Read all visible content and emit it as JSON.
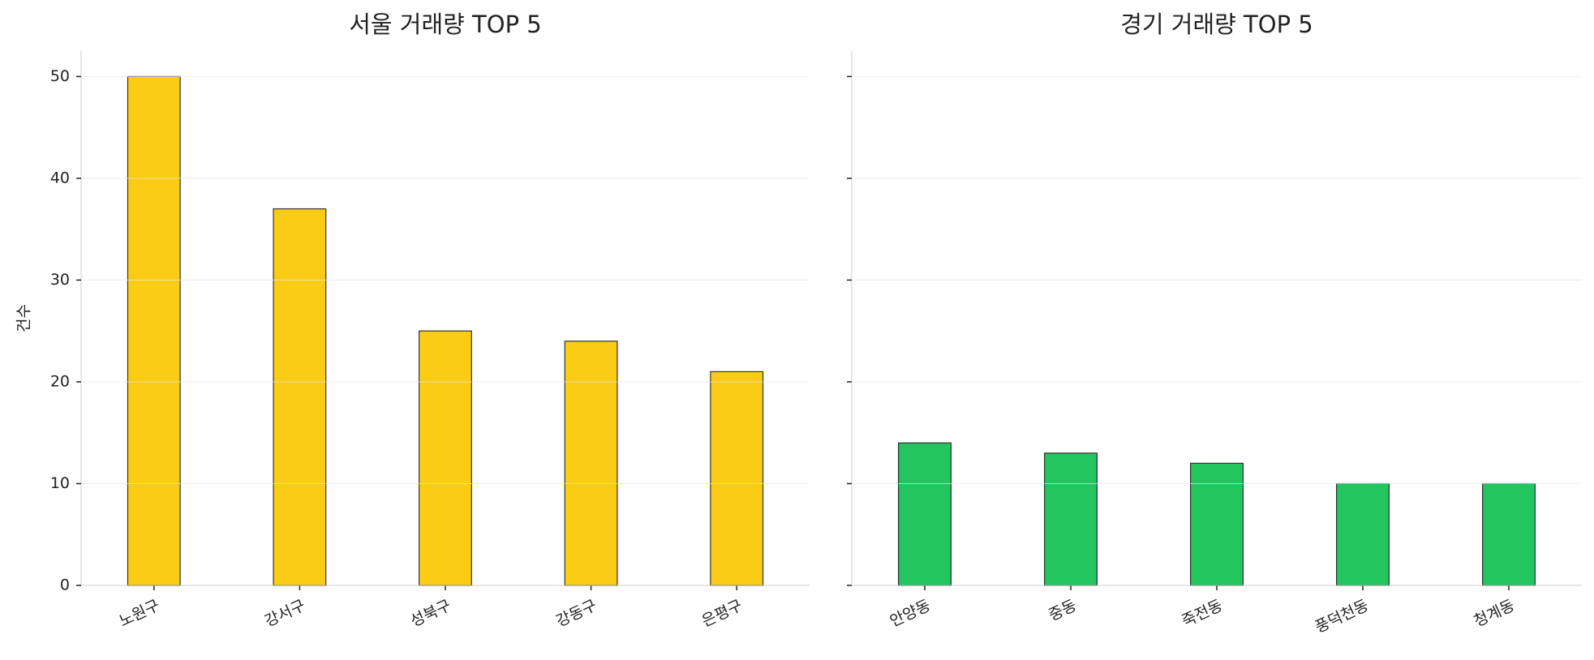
{
  "chart_data": [
    {
      "type": "bar",
      "title": "서울 거래량 TOP 5",
      "ylabel": "건수",
      "categories": [
        "노원구",
        "강서구",
        "성북구",
        "강동구",
        "은평구"
      ],
      "values": [
        50,
        37,
        25,
        24,
        21
      ],
      "color": "#facc15",
      "ylim": [
        0,
        52.5
      ],
      "yticks": [
        0,
        10,
        20,
        30,
        40,
        50
      ],
      "grid": true
    },
    {
      "type": "bar",
      "title": "경기 거래량 TOP 5",
      "categories": [
        "안양동",
        "중동",
        "죽전동",
        "풍덕천동",
        "청계동"
      ],
      "values": [
        14,
        13,
        12,
        10,
        10
      ],
      "color": "#22c55e",
      "ylim": [
        0,
        52.5
      ],
      "yticks": [
        0,
        10,
        20,
        30,
        40,
        50
      ],
      "grid": true,
      "shared_y": true
    }
  ]
}
